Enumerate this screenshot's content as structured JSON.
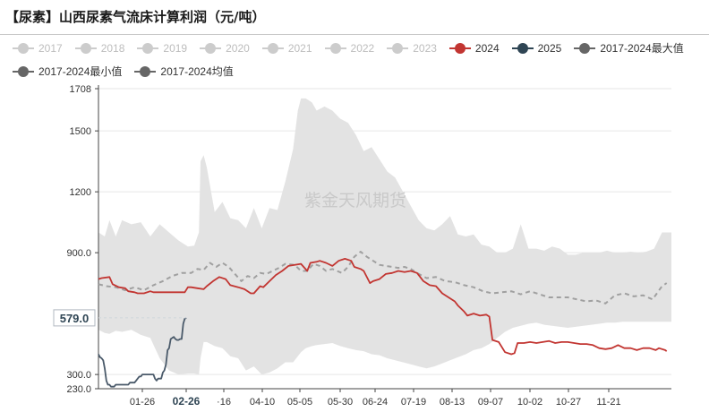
{
  "title": "【尿素】山西尿素气流床计算利润（元/吨）",
  "watermark": "紫金天风期货",
  "legend": [
    {
      "label": "2017",
      "color": "#cccccc",
      "active": false
    },
    {
      "label": "2018",
      "color": "#cccccc",
      "active": false
    },
    {
      "label": "2019",
      "color": "#cccccc",
      "active": false
    },
    {
      "label": "2020",
      "color": "#cccccc",
      "active": false
    },
    {
      "label": "2021",
      "color": "#cccccc",
      "active": false
    },
    {
      "label": "2022",
      "color": "#cccccc",
      "active": false
    },
    {
      "label": "2023",
      "color": "#cccccc",
      "active": false
    },
    {
      "label": "2024",
      "color": "#c23531",
      "active": true
    },
    {
      "label": "2025",
      "color": "#2f4554",
      "active": true
    },
    {
      "label": "2017-2024最大值",
      "color": "#666666",
      "active": true
    },
    {
      "label": "2017-2024最小值",
      "color": "#666666",
      "active": true
    },
    {
      "label": "2017-2024均值",
      "color": "#666666",
      "active": true
    }
  ],
  "y_axis_labels": [
    "1708",
    "1500",
    "1200",
    "900.0",
    "300.0",
    "230.0"
  ],
  "x_axis_labels": [
    "01-26",
    "02-26",
    "·16",
    "04-10",
    "05-05",
    "05-30",
    "06-24",
    "07-19",
    "08-13",
    "09-07",
    "10-02",
    "10-27",
    "11-21"
  ],
  "value_tag": "579.0",
  "chart_data": {
    "type": "line",
    "title": "【尿素】山西尿素气流床计算利润（元/吨）",
    "x_unit": "day of year (tick labels MM-DD)",
    "x_ticks": [
      "01-26",
      "02-26",
      "·16",
      "04-10",
      "05-05",
      "05-30",
      "06-24",
      "07-19",
      "08-13",
      "09-07",
      "10-02",
      "10-27",
      "11-21"
    ],
    "y_ticks": [
      1708,
      1500,
      1200,
      900,
      300,
      230
    ],
    "ylim": [
      230,
      1708
    ],
    "xlim": [
      1,
      366
    ],
    "grid": true,
    "legend_position": "top",
    "highlight": {
      "series": "2025",
      "value": 579.0,
      "x": 57
    },
    "band": {
      "upper_name": "2017-2024最大值",
      "lower_name": "2017-2024最小值",
      "x": [
        1,
        5,
        8,
        12,
        16,
        22,
        28,
        34,
        40,
        46,
        52,
        58,
        62,
        65,
        66,
        68,
        70,
        75,
        80,
        85,
        90,
        95,
        100,
        105,
        110,
        115,
        120,
        125,
        128,
        130,
        133,
        137,
        140,
        145,
        150,
        155,
        160,
        165,
        170,
        175,
        180,
        185,
        190,
        195,
        200,
        205,
        210,
        215,
        220,
        225,
        230,
        235,
        240,
        245,
        250,
        255,
        260,
        265,
        270,
        275,
        280,
        285,
        290,
        295,
        300,
        305,
        310,
        315,
        320,
        325,
        330,
        335,
        340,
        345,
        350,
        355,
        360,
        362,
        366
      ],
      "upper": [
        1000,
        980,
        1060,
        980,
        1060,
        1040,
        1050,
        980,
        1040,
        1000,
        960,
        930,
        935,
        1000,
        1350,
        1380,
        1320,
        1100,
        1150,
        1070,
        1060,
        1020,
        1120,
        1020,
        1120,
        1110,
        1250,
        1410,
        1600,
        1660,
        1660,
        1640,
        1600,
        1620,
        1600,
        1560,
        1540,
        1480,
        1400,
        1420,
        1360,
        1300,
        1270,
        1200,
        1130,
        1060,
        1020,
        1010,
        1040,
        1080,
        990,
        980,
        990,
        940,
        930,
        900,
        900,
        920,
        1040,
        920,
        920,
        910,
        930,
        920,
        890,
        890,
        900,
        900,
        900,
        910,
        900,
        900,
        905,
        900,
        905,
        920,
        1000,
        1000,
        1000
      ],
      "lower": [
        520,
        505,
        500,
        515,
        510,
        520,
        495,
        480,
        380,
        320,
        300,
        305,
        305,
        300,
        380,
        460,
        460,
        440,
        430,
        390,
        380,
        320,
        340,
        300,
        310,
        330,
        360,
        360,
        390,
        410,
        430,
        440,
        445,
        450,
        455,
        440,
        430,
        420,
        415,
        400,
        395,
        380,
        370,
        360,
        350,
        340,
        330,
        340,
        355,
        370,
        385,
        400,
        420,
        430,
        450,
        480,
        510,
        530,
        540,
        550,
        555,
        545,
        540,
        535,
        530,
        535,
        540,
        545,
        550,
        555,
        555,
        560,
        560,
        560,
        560,
        560,
        560,
        560,
        560
      ]
    },
    "series": [
      {
        "name": "2017-2024均值",
        "style": "dashed",
        "color": "#a0a0a0",
        "x": [
          1,
          6,
          12,
          18,
          24,
          30,
          36,
          42,
          48,
          54,
          60,
          64,
          68,
          72,
          76,
          80,
          84,
          88,
          92,
          96,
          100,
          104,
          108,
          112,
          116,
          120,
          126,
          130,
          134,
          138,
          142,
          146,
          150,
          156,
          160,
          164,
          168,
          172,
          176,
          180,
          184,
          188,
          192,
          196,
          200,
          204,
          210,
          216,
          222,
          228,
          234,
          240,
          246,
          252,
          258,
          264,
          270,
          276,
          282,
          288,
          294,
          300,
          306,
          312,
          318,
          324,
          330,
          336,
          342,
          348,
          354,
          360,
          363
        ],
        "y": [
          745,
          735,
          730,
          715,
          730,
          715,
          740,
          760,
          785,
          800,
          800,
          820,
          815,
          850,
          830,
          850,
          830,
          795,
          760,
          785,
          775,
          800,
          795,
          810,
          825,
          845,
          840,
          810,
          810,
          845,
          835,
          810,
          820,
          800,
          830,
          880,
          905,
          880,
          860,
          840,
          835,
          830,
          825,
          830,
          820,
          800,
          775,
          780,
          760,
          755,
          740,
          730,
          710,
          700,
          705,
          710,
          695,
          710,
          695,
          680,
          680,
          680,
          670,
          660,
          665,
          650,
          690,
          700,
          685,
          690,
          670,
          735,
          750
        ]
      },
      {
        "name": "2024",
        "color": "#c23531",
        "x": [
          1,
          3,
          8,
          10,
          14,
          18,
          20,
          24,
          26,
          30,
          34,
          36,
          40,
          44,
          48,
          52,
          56,
          58,
          60,
          64,
          68,
          70,
          74,
          78,
          82,
          85,
          90,
          94,
          98,
          100,
          104,
          106,
          110,
          114,
          118,
          122,
          126,
          130,
          134,
          136,
          140,
          142,
          146,
          150,
          154,
          158,
          162,
          164,
          168,
          170,
          174,
          176,
          180,
          184,
          188,
          192,
          196,
          200,
          204,
          208,
          212,
          216,
          220,
          224,
          228,
          230,
          234,
          236,
          240,
          244,
          248,
          250,
          252,
          256,
          260,
          264,
          266,
          268,
          272,
          276,
          280,
          284,
          288,
          292,
          296,
          300,
          304,
          308,
          312,
          316,
          320,
          324,
          328,
          332,
          336,
          340,
          344,
          348,
          352,
          356,
          358,
          362,
          363
        ],
        "y": [
          770,
          775,
          780,
          745,
          730,
          725,
          710,
          705,
          700,
          700,
          710,
          705,
          705,
          705,
          705,
          705,
          705,
          730,
          730,
          725,
          720,
          735,
          760,
          780,
          770,
          740,
          730,
          720,
          700,
          700,
          735,
          730,
          760,
          790,
          810,
          835,
          840,
          845,
          810,
          850,
          855,
          860,
          850,
          835,
          860,
          870,
          860,
          830,
          820,
          810,
          750,
          760,
          770,
          795,
          800,
          810,
          805,
          810,
          800,
          760,
          740,
          735,
          700,
          680,
          660,
          640,
          610,
          590,
          600,
          590,
          595,
          585,
          470,
          460,
          410,
          400,
          405,
          455,
          455,
          460,
          455,
          460,
          465,
          455,
          460,
          460,
          455,
          450,
          450,
          445,
          430,
          425,
          430,
          445,
          430,
          430,
          420,
          430,
          430,
          420,
          430,
          420,
          415
        ]
      },
      {
        "name": "2025",
        "color": "#4a5a6a",
        "x": [
          1,
          2,
          3,
          4,
          5,
          6,
          7,
          8,
          9,
          10,
          11,
          12,
          13,
          14,
          15,
          16,
          17,
          18,
          19,
          20,
          21,
          22,
          23,
          24,
          25,
          26,
          27,
          28,
          29,
          30,
          31,
          32,
          33,
          34,
          35,
          36,
          37,
          38,
          39,
          40,
          41,
          42,
          43,
          44,
          45,
          46,
          47,
          48,
          49,
          50,
          51,
          52,
          53,
          54,
          55,
          56,
          57
        ],
        "y": [
          400,
          385,
          380,
          370,
          330,
          270,
          250,
          250,
          240,
          240,
          240,
          250,
          250,
          250,
          250,
          250,
          250,
          250,
          250,
          250,
          260,
          260,
          260,
          260,
          270,
          280,
          290,
          290,
          300,
          300,
          300,
          300,
          300,
          300,
          300,
          300,
          280,
          270,
          280,
          280,
          280,
          310,
          320,
          350,
          420,
          430,
          475,
          480,
          485,
          475,
          470,
          470,
          475,
          475,
          550,
          575,
          579
        ]
      }
    ]
  }
}
